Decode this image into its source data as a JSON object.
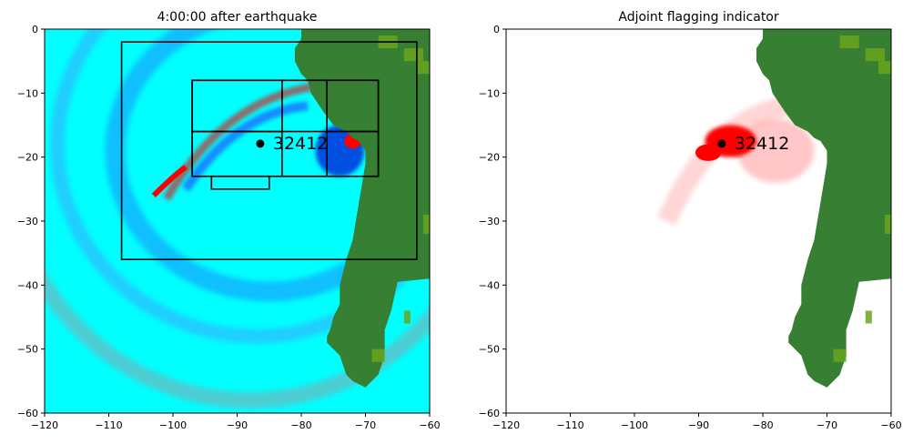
{
  "chart_data": [
    {
      "type": "heatmap",
      "title": "4:00:00 after earthquake",
      "xlim": [
        -120,
        -60
      ],
      "ylim": [
        -60,
        0
      ],
      "xticks": [
        -120,
        -110,
        -100,
        -90,
        -80,
        -70,
        -60
      ],
      "yticks": [
        0,
        -10,
        -20,
        -30,
        -40,
        -50,
        -60
      ],
      "xtick_labels": [
        "−120",
        "−110",
        "−100",
        "−90",
        "−80",
        "−70",
        "−60"
      ],
      "ytick_labels": [
        "0",
        "−10",
        "−20",
        "−30",
        "−40",
        "−50",
        "−60"
      ],
      "grid": false,
      "colors": {
        "background": "#00ffff",
        "land": "#367f33",
        "land_high": "#6aa51c",
        "wave_positive": "#ff0000",
        "wave_negative": "#0050e0",
        "wave_trail": "#8aa5b0"
      },
      "gauge": {
        "name": "32412",
        "x": -86.4,
        "y": -17.9
      },
      "refinement_boxes": [
        {
          "x0": -108,
          "x1": -62,
          "y0": -36,
          "y1": -2
        },
        {
          "x0": -97,
          "x1": -68,
          "y0": -23,
          "y1": -8
        },
        {
          "x0": -97,
          "x1": -83,
          "y0": -16,
          "y1": -8
        },
        {
          "x0": -83,
          "x1": -76,
          "y0": -23,
          "y1": -8
        },
        {
          "x0": -76,
          "x1": -68,
          "y0": -16,
          "y1": -8
        },
        {
          "x0": -97,
          "x1": -68,
          "y0": -23,
          "y1": -16
        },
        {
          "x0": -94,
          "x1": -85,
          "y0": -25,
          "y1": -23
        }
      ]
    },
    {
      "type": "heatmap",
      "title": "Adjoint flagging indicator",
      "xlim": [
        -120,
        -60
      ],
      "ylim": [
        -60,
        0
      ],
      "xticks": [
        -120,
        -110,
        -100,
        -90,
        -80,
        -70,
        -60
      ],
      "yticks": [
        0,
        -10,
        -20,
        -30,
        -40,
        -50,
        -60
      ],
      "xtick_labels": [
        "−120",
        "−110",
        "−100",
        "−90",
        "−80",
        "−70",
        "−60"
      ],
      "ytick_labels": [
        "0",
        "−10",
        "−20",
        "−30",
        "−40",
        "−50",
        "−60"
      ],
      "grid": false,
      "colors": {
        "background": "#ffffff",
        "land": "#367f33",
        "land_high": "#6aa51c",
        "flag": "#ff0000"
      },
      "gauge": {
        "name": "32412",
        "x": -86.4,
        "y": -17.9
      }
    }
  ]
}
